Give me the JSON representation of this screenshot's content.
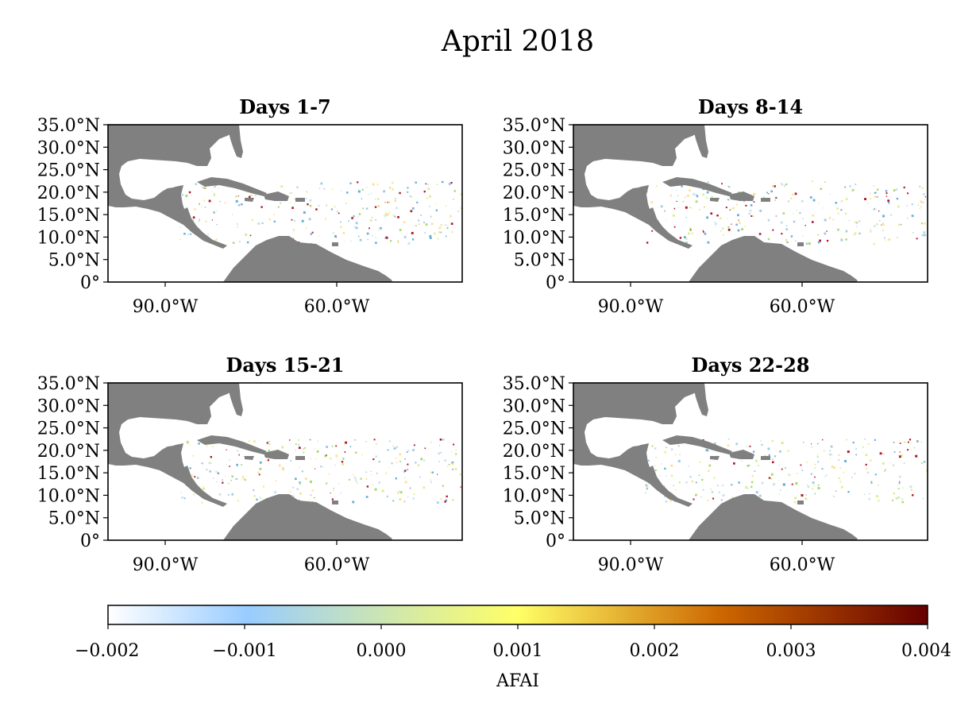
{
  "title": "April 2018",
  "colors": {
    "land": "#808080",
    "ocean": "#ffffff",
    "colormap": [
      "#ffffff",
      "#99ccff",
      "#ffff66",
      "#cc6600",
      "#660000"
    ]
  },
  "axes": {
    "y_ticks": [
      "35.0°N",
      "30.0°N",
      "25.0°N",
      "20.0°N",
      "15.0°N",
      "10.0°N",
      "5.0°N",
      "0°"
    ],
    "x_ticks": [
      "90.0°W",
      "60.0°W"
    ]
  },
  "panels": [
    {
      "title": "Days 1-7"
    },
    {
      "title": "Days 8-14"
    },
    {
      "title": "Days 15-21"
    },
    {
      "title": "Days 22-28"
    }
  ],
  "colorbar": {
    "ticks": [
      "−0.002",
      "−0.001",
      "0.000",
      "0.001",
      "0.002",
      "0.003",
      "0.004"
    ],
    "label": "AFAI",
    "range": [
      -0.002,
      0.004
    ]
  }
}
